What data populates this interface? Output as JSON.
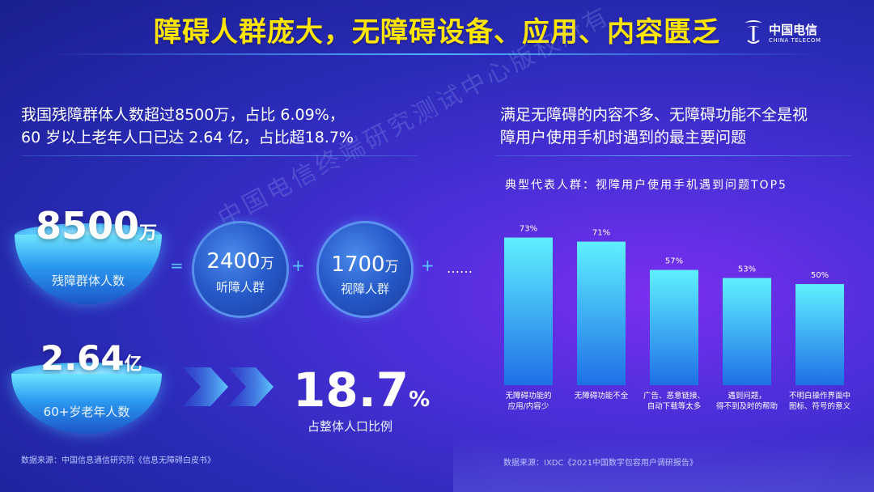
{
  "header": {
    "title": "障碍人群庞大，无障碍设备、应用、内容匮乏",
    "logo_main": "中国电信",
    "logo_sub": "CHINA TELECOM"
  },
  "left": {
    "intro_line1": "我国残障群体人数超过8500万，占比 6.09%，",
    "intro_line2": "60 岁以上老年人口已达 2.64 亿，占比超18.7%",
    "bowl1": {
      "num": "8500",
      "unit": "万",
      "label": "残障群体人数"
    },
    "eq": "=",
    "sphere1": {
      "num": "2400",
      "unit": "万",
      "label": "听障人群"
    },
    "plus1": "+",
    "sphere2": {
      "num": "1700",
      "unit": "万",
      "label": "视障人群"
    },
    "plus2": "+",
    "ellipsis": "……",
    "bowl2": {
      "num": "2.64",
      "unit": "亿",
      "label": "60+岁老年人数"
    },
    "pct": {
      "num": "18.7",
      "unit": "%",
      "label": "占整体人口比例"
    },
    "source": "数据来源：中国信息通信研究院《信息无障碍白皮书》"
  },
  "right": {
    "intro_line1": "满足无障碍的内容不多、无障碍功能不全是视",
    "intro_line2": "障用户使用手机时遇到的最主要问题",
    "source": "数据来源：IXDC《2021中国数字包容用户调研报告》"
  },
  "watermark": "中国电信终端研究测试中心版权所有",
  "colors": {
    "title": "#ffe600",
    "bar_top": "#5ff0ff",
    "bar_bottom": "#1f6fe6",
    "accent": "#58c8ff"
  },
  "chart_data": {
    "type": "bar",
    "title": "典型代表人群：视障用户使用手机遇到问题TOP5",
    "categories": [
      [
        "无障碍功能的",
        "应用/内容少"
      ],
      [
        "无障碍功能不全"
      ],
      [
        "广告、恶意链接、",
        "自动下载等太多"
      ],
      [
        "遇到问题，",
        "得不到及时的帮助"
      ],
      [
        "不明白操作界面中",
        "图标、符号的意义"
      ]
    ],
    "values": [
      73,
      71,
      57,
      53,
      50
    ],
    "value_labels": [
      "73%",
      "71%",
      "57%",
      "53%",
      "50%"
    ],
    "ylim": [
      0,
      80
    ],
    "grid": false,
    "legend": "none"
  }
}
